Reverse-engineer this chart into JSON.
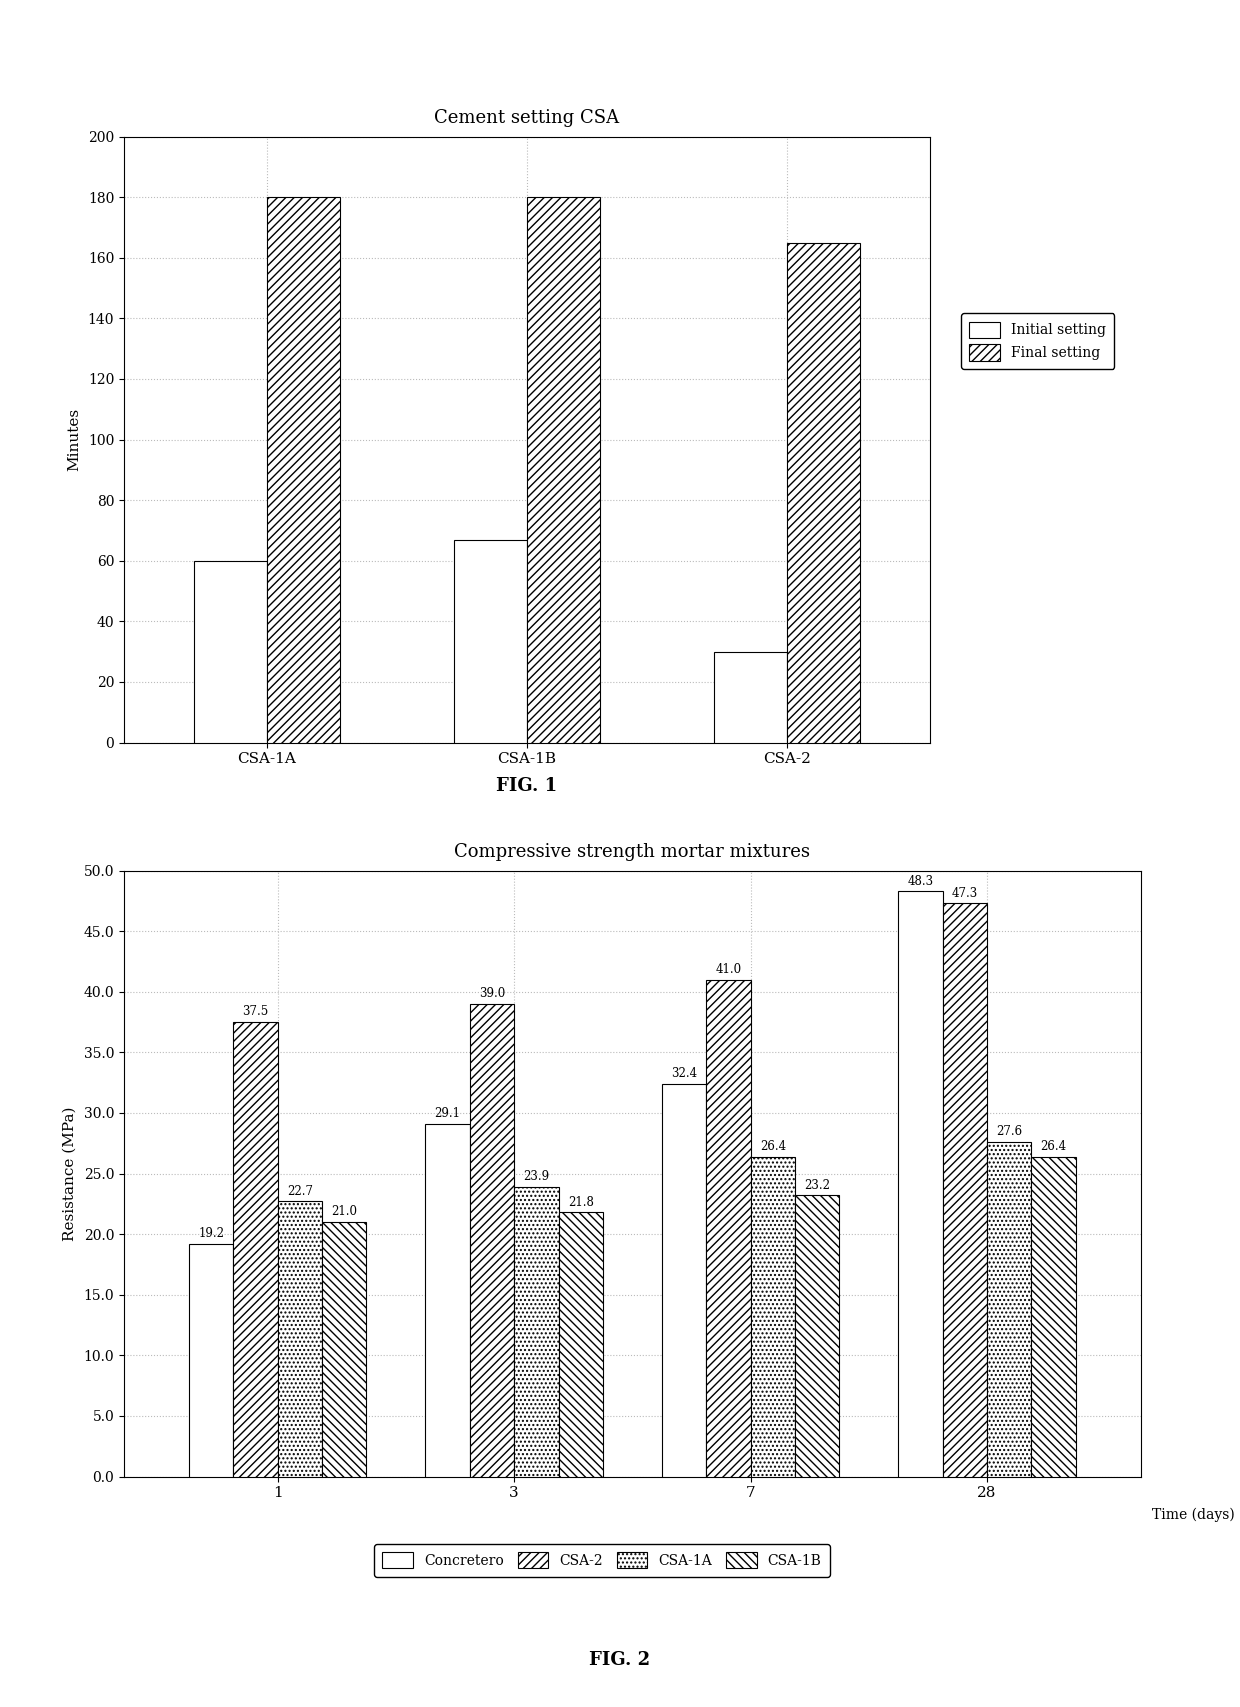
{
  "fig1": {
    "title": "Cement setting CSA",
    "ylabel": "Minutes",
    "categories": [
      "CSA-1A",
      "CSA-1B",
      "CSA-2"
    ],
    "initial_setting": [
      60,
      67,
      30
    ],
    "final_setting": [
      180,
      180,
      165
    ],
    "ylim": [
      0,
      200
    ],
    "yticks": [
      0,
      20,
      40,
      60,
      80,
      100,
      120,
      140,
      160,
      180,
      200
    ],
    "legend_labels": [
      "Initial setting",
      "Final setting"
    ],
    "fig_label": "FIG. 1"
  },
  "fig2": {
    "title": "Compressive strength mortar mixtures",
    "ylabel": "Resistance (MPa)",
    "xlabel": "Time (days)",
    "categories": [
      1,
      3,
      7,
      28
    ],
    "series": {
      "Concretero": [
        19.2,
        29.1,
        32.4,
        48.3
      ],
      "CSA-2": [
        37.5,
        39.0,
        41.0,
        47.3
      ],
      "CSA-1A": [
        22.7,
        23.9,
        26.4,
        27.6
      ],
      "CSA-1B": [
        21.0,
        21.8,
        23.2,
        26.4
      ]
    },
    "ylim": [
      0.0,
      50.0
    ],
    "yticks": [
      0.0,
      5.0,
      10.0,
      15.0,
      20.0,
      25.0,
      30.0,
      35.0,
      40.0,
      45.0,
      50.0
    ],
    "legend_labels": [
      "Concretero",
      "CSA-2",
      "CSA-1A",
      "CSA-1B"
    ],
    "fig_label": "FIG. 2"
  },
  "background_color": "#ffffff",
  "bar_edge_color": "#000000",
  "grid_color": "#bbbbbb",
  "text_color": "#000000"
}
